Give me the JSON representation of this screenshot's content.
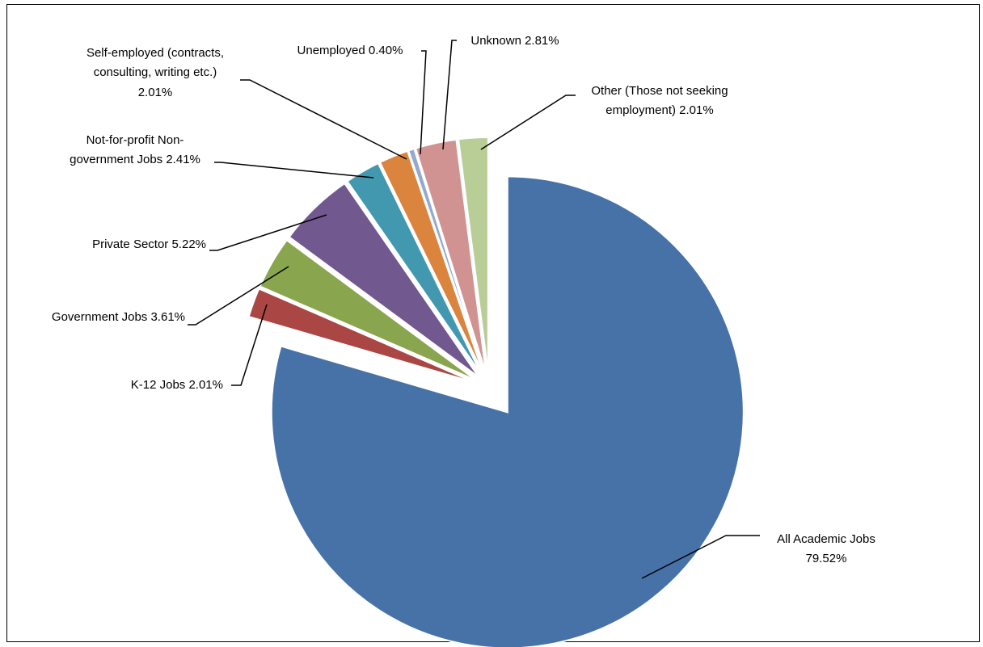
{
  "chart_data": {
    "type": "pie",
    "title": "",
    "slices": [
      {
        "label": "All Academic Jobs",
        "value": 79.52,
        "value_text": "79.52%",
        "color": "#4672A8"
      },
      {
        "label": "K-12 Jobs",
        "value": 2.01,
        "value_text": "2.01%",
        "color": "#AA4643"
      },
      {
        "label": "Government Jobs",
        "value": 3.61,
        "value_text": "3.61%",
        "color": "#89A54E"
      },
      {
        "label": "Private Sector",
        "value": 5.22,
        "value_text": "5.22%",
        "color": "#71588F"
      },
      {
        "label": "Not-for-profit Non-government Jobs",
        "value": 2.41,
        "value_text": "2.41%",
        "color": "#4198AF"
      },
      {
        "label": "Self-employed (contracts, consulting, writing etc.)",
        "value": 2.01,
        "value_text": "2.01%",
        "color": "#DB843D"
      },
      {
        "label": "Unemployed",
        "value": 0.4,
        "value_text": "0.40%",
        "color": "#93A9CF"
      },
      {
        "label": "Unknown",
        "value": 2.81,
        "value_text": "2.81%",
        "color": "#D19392"
      },
      {
        "label": "Other (Those not seeking employment)",
        "value": 2.01,
        "value_text": "2.01%",
        "color": "#B9CD96"
      }
    ],
    "exploded": "all slices exploded; largest slice pulled away from center",
    "legend": "none (data labels with leader lines)"
  },
  "labels": {
    "academic_l1": "All Academic Jobs",
    "academic_l2": "79.52%",
    "k12": "K-12 Jobs  2.01%",
    "government": "Government Jobs 3.61%",
    "private": "Private Sector  5.22%",
    "nonprofit_l1": "Not-for-profit Non-",
    "nonprofit_l2": "government Jobs  2.41%",
    "self_l1": "Self-employed (contracts,",
    "self_l2": "consulting, writing etc.)",
    "self_l3": "2.01%",
    "unemployed": "Unemployed  0.40%",
    "unknown": "Unknown  2.81%",
    "other_l1": "Other (Those not seeking",
    "other_l2": "employment) 2.01%"
  }
}
